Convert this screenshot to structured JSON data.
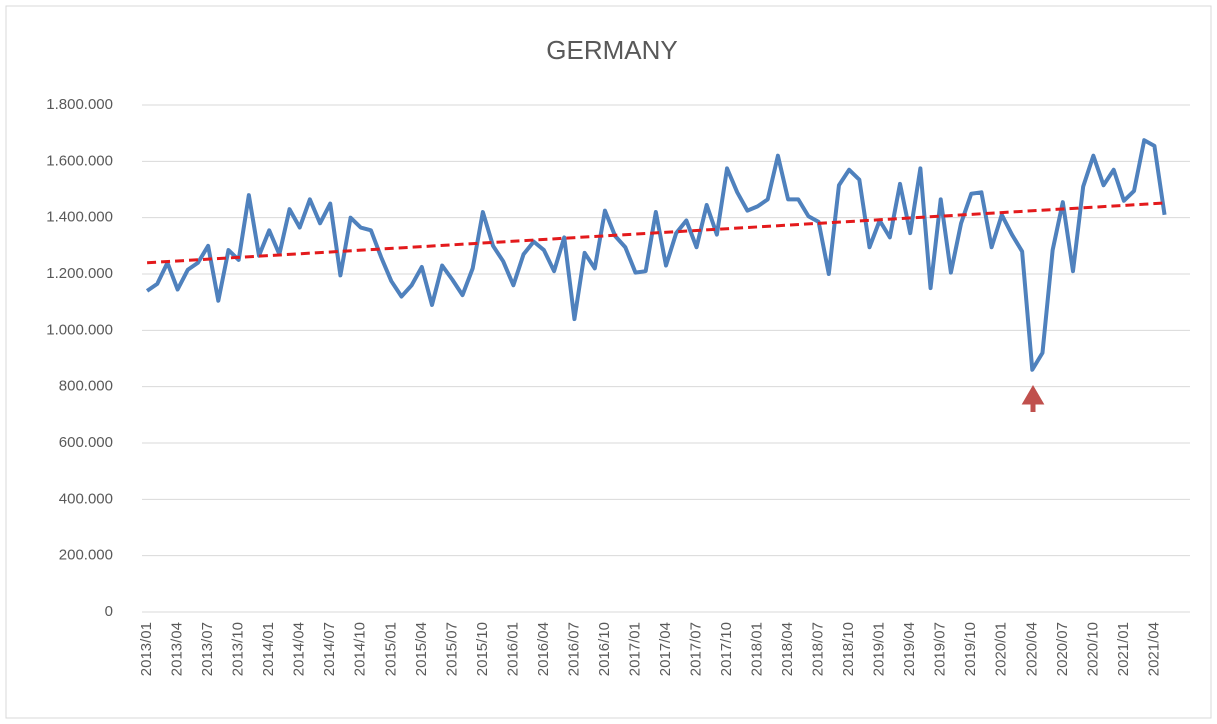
{
  "chart_data": {
    "type": "line",
    "title": "GERMANY",
    "categories": [
      "2013/01",
      null,
      null,
      "2013/04",
      null,
      null,
      "2013/07",
      null,
      null,
      "2013/10",
      null,
      null,
      "2014/01",
      null,
      null,
      "2014/04",
      null,
      null,
      "2014/07",
      null,
      null,
      "2014/10",
      null,
      null,
      "2015/01",
      null,
      null,
      "2015/04",
      null,
      null,
      "2015/07",
      null,
      null,
      "2015/10",
      null,
      null,
      "2016/01",
      null,
      null,
      "2016/04",
      null,
      null,
      "2016/07",
      null,
      null,
      "2016/10",
      null,
      null,
      "2017/01",
      null,
      null,
      "2017/04",
      null,
      null,
      "2017/07",
      null,
      null,
      "2017/10",
      null,
      null,
      "2018/01",
      null,
      null,
      "2018/04",
      null,
      null,
      "2018/07",
      null,
      null,
      "2018/10",
      null,
      null,
      "2019/01",
      null,
      null,
      "2019/04",
      null,
      null,
      "2019/07",
      null,
      null,
      "2019/10",
      null,
      null,
      "2020/01",
      null,
      null,
      "2020/04",
      null,
      null,
      "2020/07",
      null,
      null,
      "2020/10",
      null,
      null,
      "2021/01",
      null,
      null,
      "2021/04",
      null
    ],
    "series": [
      {
        "color": "#4f81bd",
        "values": [
          1140000,
          1165000,
          1240000,
          1145000,
          1215000,
          1240000,
          1300000,
          1105000,
          1285000,
          1250000,
          1480000,
          1265000,
          1355000,
          1270000,
          1430000,
          1365000,
          1465000,
          1380000,
          1450000,
          1195000,
          1400000,
          1365000,
          1355000,
          1260000,
          1175000,
          1120000,
          1160000,
          1225000,
          1090000,
          1230000,
          1180000,
          1125000,
          1220000,
          1420000,
          1300000,
          1245000,
          1160000,
          1270000,
          1315000,
          1285000,
          1210000,
          1330000,
          1040000,
          1275000,
          1220000,
          1425000,
          1335000,
          1295000,
          1205000,
          1210000,
          1420000,
          1230000,
          1345000,
          1390000,
          1295000,
          1445000,
          1340000,
          1575000,
          1490000,
          1425000,
          1440000,
          1465000,
          1620000,
          1465000,
          1465000,
          1405000,
          1385000,
          1200000,
          1515000,
          1570000,
          1535000,
          1295000,
          1390000,
          1330000,
          1520000,
          1345000,
          1575000,
          1150000,
          1465000,
          1205000,
          1380000,
          1485000,
          1490000,
          1295000,
          1410000,
          1340000,
          1280000,
          860000,
          920000,
          1285000,
          1455000,
          1210000,
          1510000,
          1620000,
          1515000,
          1570000,
          1460000,
          1495000,
          1675000,
          1655000,
          1410000
        ]
      }
    ],
    "trendline": {
      "color": "#e31a1c",
      "values": [
        1240000,
        1452000
      ]
    },
    "ylim": [
      0,
      1800000
    ],
    "yticks": [
      0,
      {
        "value": 200000,
        "label": "200.000"
      },
      {
        "value": 400000,
        "label": "400.000"
      },
      {
        "value": 600000,
        "label": "600.000"
      },
      {
        "value": 800000,
        "label": "800.000"
      },
      {
        "value": 1000000,
        "label": "1.000.000"
      },
      {
        "value": 1200000,
        "label": "1.200.000"
      },
      {
        "value": 1400000,
        "label": "1.400.000"
      },
      {
        "value": 1600000,
        "label": "1.600.000"
      },
      {
        "value": 1800000,
        "label": "1.800.000"
      }
    ],
    "grid": true
  }
}
